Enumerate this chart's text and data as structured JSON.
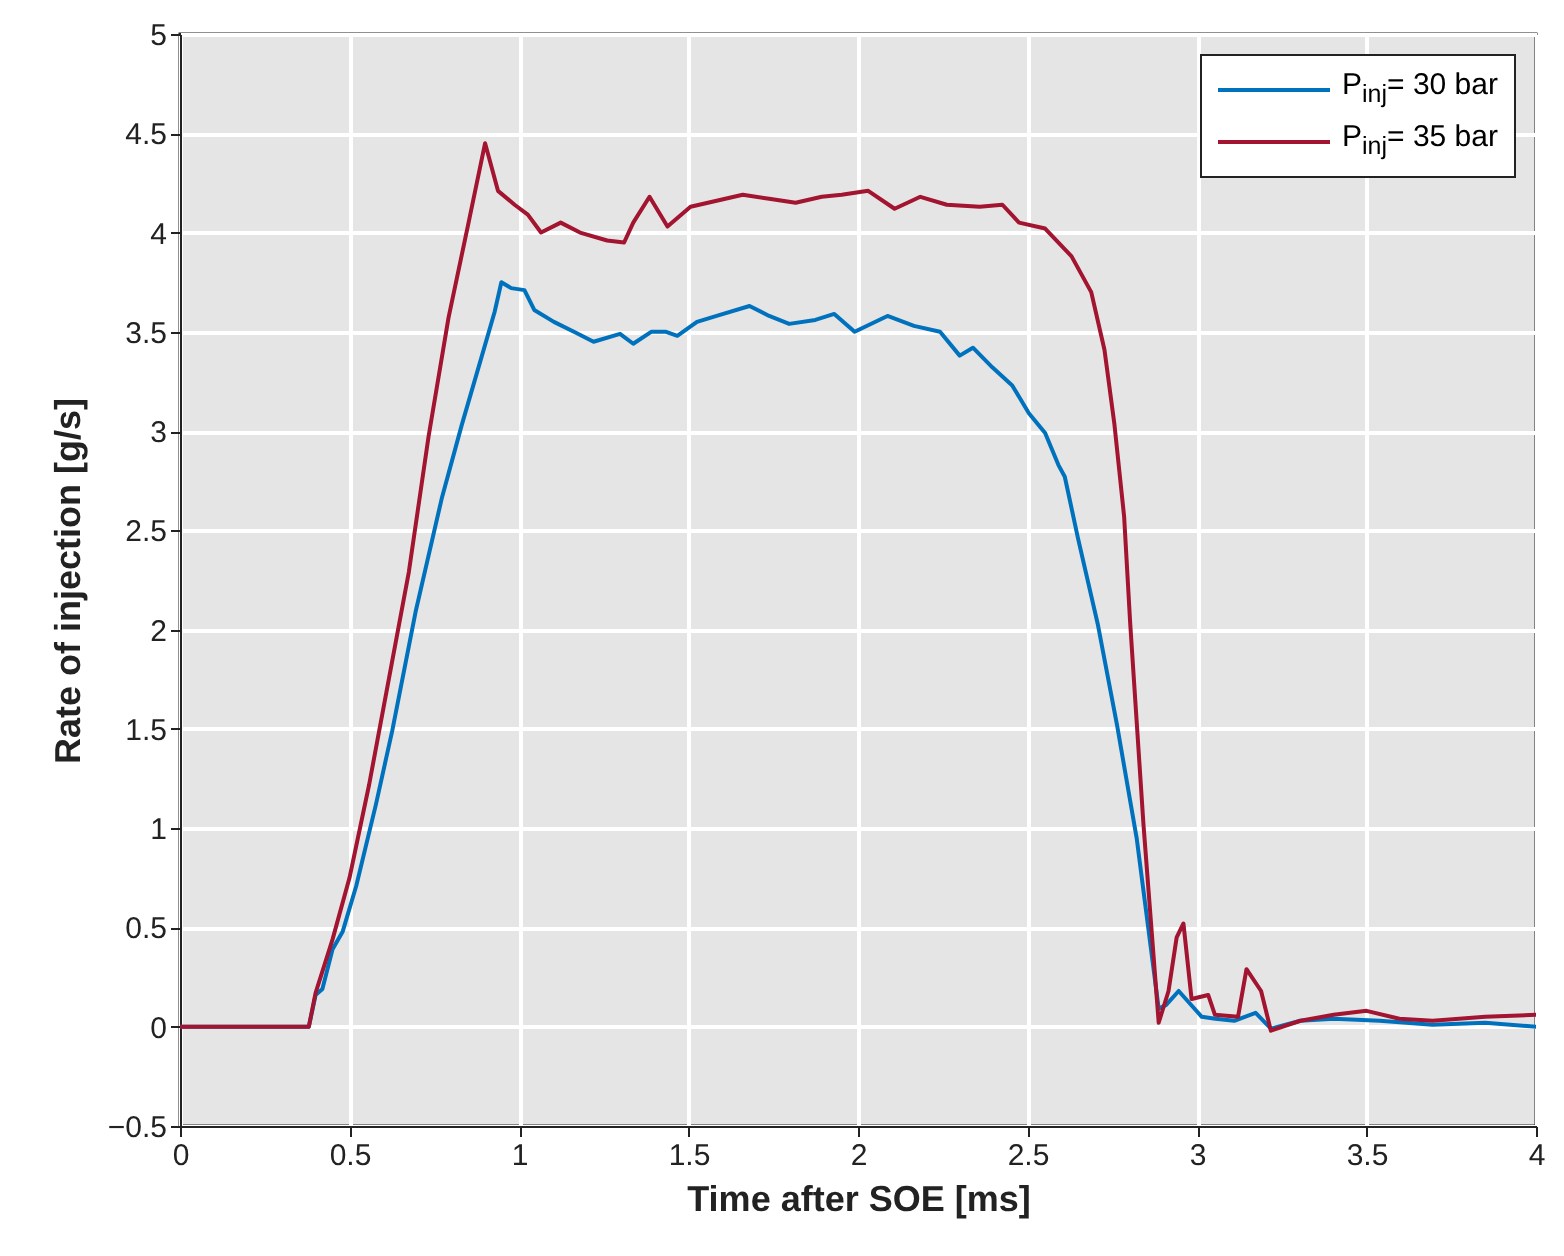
{
  "chart_data": {
    "type": "line",
    "xlabel": "Time after SOE  [ms]",
    "ylabel": "Rate of injection  [g/s]",
    "xlim": [
      0,
      4
    ],
    "xticks": [
      0,
      0.5,
      1,
      1.5,
      2,
      2.5,
      3,
      3.5,
      4
    ],
    "ylim": [
      -0.5,
      5
    ],
    "yticks": [
      -0.5,
      0,
      0.5,
      1,
      1.5,
      2,
      2.5,
      3,
      3.5,
      4,
      4.5,
      5
    ],
    "grid": true,
    "legend": "top right",
    "marker": "none",
    "line_style": "solid",
    "series": [
      {
        "name": "P$_{inj}$= 30 bar",
        "color": "#0072bd",
        "x": [
          0,
          0.38,
          0.4,
          0.42,
          0.45,
          0.48,
          0.52,
          0.578,
          0.626,
          0.695,
          0.772,
          0.831,
          0.889,
          0.928,
          0.948,
          0.977,
          1.016,
          1.045,
          1.103,
          1.162,
          1.22,
          1.298,
          1.337,
          1.39,
          1.434,
          1.467,
          1.525,
          1.583,
          1.68,
          1.738,
          1.797,
          1.874,
          1.93,
          1.99,
          2.087,
          2.165,
          2.242,
          2.3,
          2.339,
          2.397,
          2.455,
          2.504,
          2.552,
          2.591,
          2.61,
          2.649,
          2.707,
          2.764,
          2.822,
          2.887,
          2.909,
          2.946,
          3.014,
          3.054,
          3.11,
          3.173,
          3.218,
          3.305,
          3.403,
          3.539,
          3.695,
          3.85,
          4.0
        ],
        "values": [
          0,
          0,
          0.16,
          0.19,
          0.39,
          0.48,
          0.71,
          1.12,
          1.49,
          2.09,
          2.66,
          3.03,
          3.37,
          3.6,
          3.75,
          3.72,
          3.71,
          3.61,
          3.55,
          3.5,
          3.45,
          3.49,
          3.44,
          3.5,
          3.5,
          3.48,
          3.55,
          3.58,
          3.63,
          3.58,
          3.54,
          3.56,
          3.59,
          3.5,
          3.58,
          3.53,
          3.5,
          3.38,
          3.42,
          3.32,
          3.23,
          3.09,
          2.99,
          2.83,
          2.77,
          2.46,
          2.03,
          1.52,
          0.95,
          0.09,
          0.11,
          0.18,
          0.05,
          0.04,
          0.03,
          0.07,
          -0.01,
          0.03,
          0.04,
          0.03,
          0.01,
          0.02,
          0
        ]
      },
      {
        "name": "P$_{inj}$= 35 bar",
        "color": "#a2142f",
        "x": [
          0,
          0.38,
          0.4,
          0.45,
          0.5,
          0.558,
          0.617,
          0.675,
          0.733,
          0.792,
          0.85,
          0.9,
          0.938,
          0.987,
          1.026,
          1.065,
          1.123,
          1.18,
          1.26,
          1.31,
          1.337,
          1.385,
          1.438,
          1.506,
          1.583,
          1.66,
          1.738,
          1.816,
          1.893,
          1.952,
          2.03,
          2.108,
          2.184,
          2.262,
          2.359,
          2.426,
          2.475,
          2.552,
          2.63,
          2.688,
          2.727,
          2.756,
          2.785,
          2.803,
          2.842,
          2.887,
          2.916,
          2.94,
          2.96,
          2.984,
          3.033,
          3.053,
          3.121,
          3.146,
          3.189,
          3.218,
          3.305,
          3.403,
          3.5,
          3.597,
          3.695,
          3.85,
          4.0
        ],
        "values": [
          0,
          0,
          0.17,
          0.44,
          0.75,
          1.22,
          1.76,
          2.29,
          2.97,
          3.57,
          4.04,
          4.45,
          4.21,
          4.14,
          4.09,
          4.0,
          4.05,
          4.0,
          3.96,
          3.95,
          4.05,
          4.18,
          4.03,
          4.13,
          4.16,
          4.19,
          4.17,
          4.15,
          4.18,
          4.19,
          4.21,
          4.12,
          4.18,
          4.14,
          4.13,
          4.14,
          4.05,
          4.02,
          3.88,
          3.7,
          3.41,
          3.04,
          2.57,
          2.03,
          1.02,
          0.02,
          0.18,
          0.45,
          0.52,
          0.14,
          0.16,
          0.06,
          0.05,
          0.29,
          0.18,
          -0.02,
          0.03,
          0.06,
          0.08,
          0.04,
          0.03,
          0.05,
          0.06
        ]
      }
    ]
  }
}
